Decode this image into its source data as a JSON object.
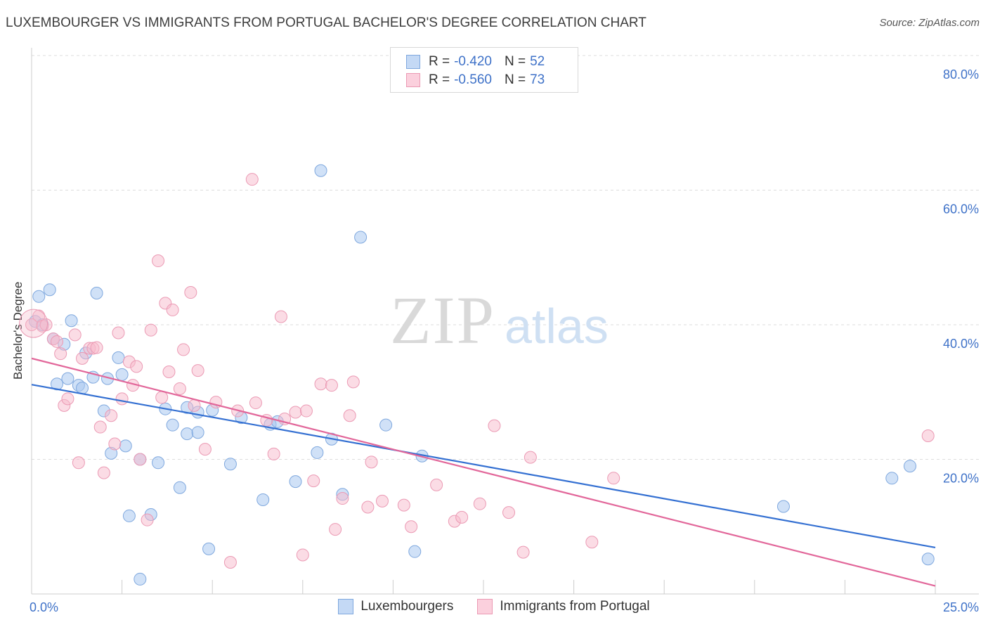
{
  "header": {
    "title": "LUXEMBOURGER VS IMMIGRANTS FROM PORTUGAL BACHELOR'S DEGREE CORRELATION CHART",
    "source": "Source: ZipAtlas.com"
  },
  "watermark": {
    "zip": "ZIP",
    "atlas": "atlas"
  },
  "legend_top": {
    "rows": [
      {
        "r_label": "R =",
        "r_value": "-0.420",
        "n_label": "N =",
        "n_value": "52"
      },
      {
        "r_label": "R =",
        "r_value": "-0.560",
        "n_label": "N =",
        "n_value": "73"
      }
    ]
  },
  "colors": {
    "series1_fill": "#a9c8f1",
    "series1_stroke": "#7fa8de",
    "series1_line": "#3470d2",
    "series2_fill": "#f7b9cc",
    "series2_stroke": "#eb9ab4",
    "series2_line": "#e2679a",
    "axis_tick_text": "#3f72c8",
    "grid": "#dddddd"
  },
  "chart_data": {
    "type": "scatter",
    "title": "LUXEMBOURGER VS IMMIGRANTS FROM PORTUGAL BACHELOR'S DEGREE CORRELATION CHART",
    "xlabel": "",
    "ylabel": "Bachelor's Degree",
    "xlim": [
      0,
      25
    ],
    "ylim": [
      0,
      80
    ],
    "x_ticks": [
      {
        "value": 0,
        "label": "0.0%"
      },
      {
        "value": 25,
        "label": "25.0%"
      }
    ],
    "y_ticks": [
      {
        "value": 20,
        "label": "20.0%"
      },
      {
        "value": 40,
        "label": "40.0%"
      },
      {
        "value": 60,
        "label": "60.0%"
      },
      {
        "value": 80,
        "label": "80.0%"
      }
    ],
    "grid": true,
    "legend_position": "bottom",
    "series": [
      {
        "name": "Luxembourgers",
        "r": -0.42,
        "n": 52,
        "trend": [
          [
            0,
            31.1
          ],
          [
            25,
            6.9
          ]
        ],
        "points": [
          [
            0.1,
            40.5
          ],
          [
            0.2,
            44.2
          ],
          [
            0.3,
            40.0
          ],
          [
            0.5,
            45.2
          ],
          [
            0.6,
            37.9
          ],
          [
            0.7,
            31.2
          ],
          [
            0.9,
            37.1
          ],
          [
            1.0,
            32.0
          ],
          [
            1.1,
            40.6
          ],
          [
            1.3,
            31.0
          ],
          [
            1.4,
            30.6
          ],
          [
            1.5,
            35.8
          ],
          [
            1.7,
            32.2
          ],
          [
            1.8,
            44.7
          ],
          [
            2.0,
            27.2
          ],
          [
            2.1,
            32.0
          ],
          [
            2.2,
            20.9
          ],
          [
            2.4,
            35.1
          ],
          [
            2.5,
            32.6
          ],
          [
            2.6,
            22.0
          ],
          [
            2.7,
            11.6
          ],
          [
            3.0,
            2.2
          ],
          [
            3.0,
            20.0
          ],
          [
            3.3,
            11.8
          ],
          [
            3.5,
            19.5
          ],
          [
            3.7,
            27.5
          ],
          [
            3.9,
            25.1
          ],
          [
            4.1,
            15.8
          ],
          [
            4.3,
            27.7
          ],
          [
            4.3,
            23.8
          ],
          [
            4.6,
            24.0
          ],
          [
            4.6,
            27.0
          ],
          [
            4.9,
            6.7
          ],
          [
            5.0,
            27.3
          ],
          [
            5.5,
            19.3
          ],
          [
            5.8,
            26.2
          ],
          [
            6.4,
            14.0
          ],
          [
            6.6,
            25.2
          ],
          [
            6.8,
            25.6
          ],
          [
            7.3,
            16.7
          ],
          [
            7.9,
            21.0
          ],
          [
            8.0,
            62.9
          ],
          [
            8.3,
            23.0
          ],
          [
            8.6,
            14.8
          ],
          [
            9.1,
            53.0
          ],
          [
            9.8,
            25.1
          ],
          [
            10.6,
            6.3
          ],
          [
            10.8,
            20.5
          ],
          [
            20.8,
            13.0
          ],
          [
            23.8,
            17.2
          ],
          [
            24.3,
            19.0
          ],
          [
            24.8,
            5.2
          ]
        ]
      },
      {
        "name": "Immigrants from Portugal",
        "r": -0.56,
        "n": 73,
        "trend": [
          [
            0,
            35.0
          ],
          [
            25,
            1.2
          ]
        ],
        "points": [
          [
            0.0,
            40.0
          ],
          [
            0.2,
            41.3
          ],
          [
            0.3,
            39.8
          ],
          [
            0.4,
            40.0
          ],
          [
            0.6,
            37.9
          ],
          [
            0.7,
            37.5
          ],
          [
            0.8,
            35.7
          ],
          [
            0.9,
            28.0
          ],
          [
            1.0,
            29.0
          ],
          [
            1.2,
            38.5
          ],
          [
            1.3,
            19.5
          ],
          [
            1.4,
            35.0
          ],
          [
            1.6,
            36.5
          ],
          [
            1.7,
            36.5
          ],
          [
            1.8,
            36.6
          ],
          [
            1.9,
            24.8
          ],
          [
            2.0,
            18.0
          ],
          [
            2.2,
            26.5
          ],
          [
            2.3,
            22.3
          ],
          [
            2.4,
            38.8
          ],
          [
            2.5,
            29.0
          ],
          [
            2.7,
            34.5
          ],
          [
            2.8,
            31.0
          ],
          [
            2.9,
            33.8
          ],
          [
            3.0,
            20.0
          ],
          [
            3.2,
            11.0
          ],
          [
            3.3,
            39.2
          ],
          [
            3.5,
            49.5
          ],
          [
            3.6,
            29.2
          ],
          [
            3.7,
            43.2
          ],
          [
            3.8,
            33.0
          ],
          [
            3.9,
            42.2
          ],
          [
            4.1,
            30.5
          ],
          [
            4.2,
            36.3
          ],
          [
            4.4,
            44.8
          ],
          [
            4.5,
            28.0
          ],
          [
            4.6,
            33.2
          ],
          [
            4.8,
            21.5
          ],
          [
            5.1,
            28.5
          ],
          [
            5.5,
            4.7
          ],
          [
            5.7,
            27.2
          ],
          [
            6.1,
            61.6
          ],
          [
            6.2,
            28.4
          ],
          [
            6.5,
            25.8
          ],
          [
            6.7,
            20.8
          ],
          [
            6.9,
            41.2
          ],
          [
            7.0,
            26.0
          ],
          [
            7.3,
            27.0
          ],
          [
            7.5,
            5.8
          ],
          [
            7.6,
            27.2
          ],
          [
            7.8,
            16.8
          ],
          [
            8.0,
            31.2
          ],
          [
            8.3,
            31.0
          ],
          [
            8.4,
            9.6
          ],
          [
            8.6,
            14.2
          ],
          [
            8.8,
            26.5
          ],
          [
            8.9,
            31.5
          ],
          [
            9.3,
            12.9
          ],
          [
            9.4,
            19.6
          ],
          [
            9.7,
            13.8
          ],
          [
            10.3,
            13.2
          ],
          [
            10.5,
            10.0
          ],
          [
            11.2,
            16.2
          ],
          [
            11.7,
            10.8
          ],
          [
            11.9,
            11.4
          ],
          [
            12.4,
            13.4
          ],
          [
            12.8,
            25.0
          ],
          [
            13.2,
            12.1
          ],
          [
            13.6,
            6.2
          ],
          [
            13.8,
            20.3
          ],
          [
            15.5,
            7.7
          ],
          [
            16.1,
            17.2
          ],
          [
            24.8,
            23.5
          ]
        ]
      }
    ]
  }
}
